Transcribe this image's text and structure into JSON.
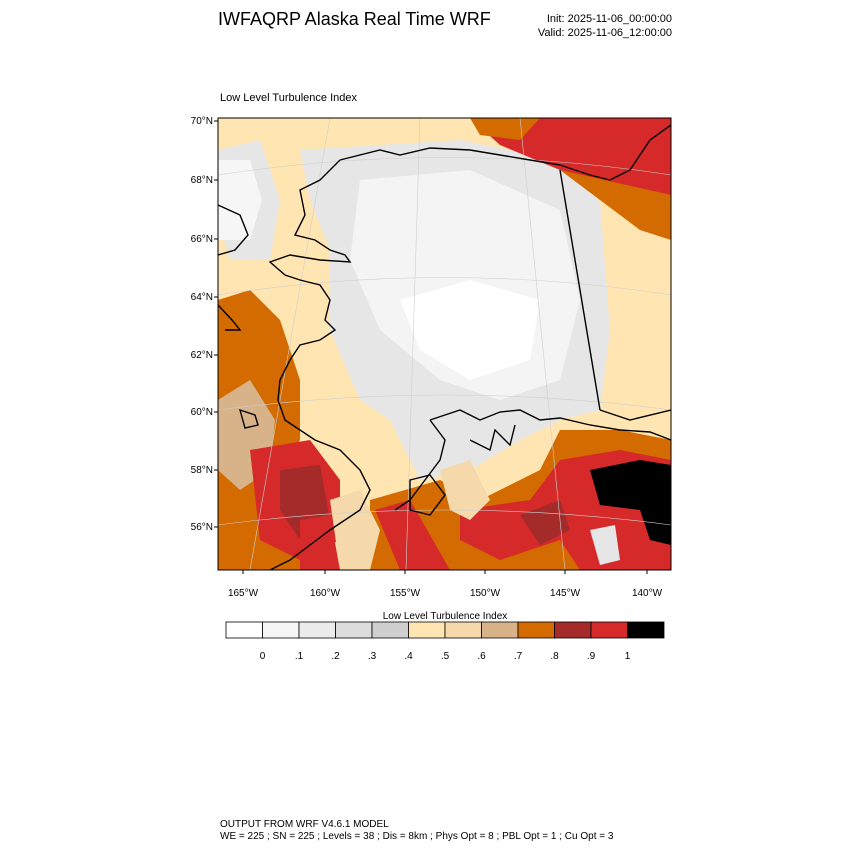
{
  "header": {
    "title": "IWFAQRP Alaska Real Time WRF",
    "init": "Init: 2025-11-06_00:00:00",
    "valid": "Valid: 2025-11-06_12:00:00"
  },
  "map": {
    "subtitle": "Low Level Turbulence Index",
    "lat_labels": [
      "70°N",
      "68°N",
      "66°N",
      "64°N",
      "62°N",
      "60°N",
      "58°N",
      "56°N"
    ],
    "lon_labels": [
      "165°W",
      "160°W",
      "155°W",
      "150°W",
      "145°W",
      "140°W"
    ]
  },
  "colorbar": {
    "title": "Low Level Turbulence Index",
    "colors": [
      "#ffffff",
      "#f6f6f6",
      "#ececec",
      "#dcdcdc",
      "#cfcfcf",
      "#ffe5b2",
      "#f5d9aa",
      "#d8b38a",
      "#d46b00",
      "#a52a2a",
      "#d62a2a",
      "#000000"
    ],
    "labels": [
      "0",
      ".1",
      ".2",
      ".3",
      ".4",
      ".5",
      ".6",
      ".7",
      ".8",
      ".9",
      "1"
    ]
  },
  "footer": {
    "line1": "OUTPUT FROM WRF V4.6.1 MODEL",
    "line2": "WE = 225 ; SN = 225 ; Levels = 38 ; Dis = 8km ; Phys Opt = 8 ; PBL Opt = 1 ; Cu Opt = 3"
  }
}
